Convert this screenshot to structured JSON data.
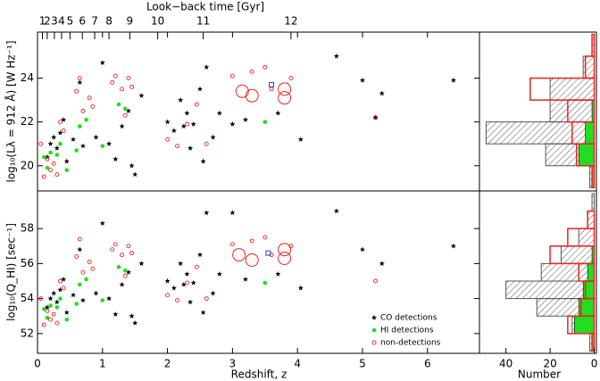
{
  "chart_data": [
    {
      "type": "scatter",
      "ylabel": "log₁₀(Lλ = 912 Å) [W Hz⁻¹]",
      "x2label": "Look−back time [Gyr]",
      "xlim": [
        0,
        6.8
      ],
      "ylim": [
        18.85,
        26.1
      ],
      "yticks": [
        20,
        22,
        24
      ],
      "x2ticks": [
        {
          "value": 0.076,
          "label": "1"
        },
        {
          "value": 0.15,
          "label": "2"
        },
        {
          "value": 0.26,
          "label": "3"
        },
        {
          "value": 0.37,
          "label": "4"
        },
        {
          "value": 0.5,
          "label": "5"
        },
        {
          "value": 0.69,
          "label": "6"
        },
        {
          "value": 0.88,
          "label": "7"
        },
        {
          "value": 1.1,
          "label": "8"
        },
        {
          "value": 1.42,
          "label": "9"
        },
        {
          "value": 1.85,
          "label": "10"
        },
        {
          "value": 2.55,
          "label": "11"
        },
        {
          "value": 3.9,
          "label": "12"
        }
      ],
      "series": [
        {
          "color": "#000000",
          "marker": "star",
          "x": [
            0.15,
            0.2,
            0.25,
            0.3,
            0.35,
            0.4,
            0.45,
            0.55,
            0.65,
            0.7,
            0.9,
            1.1,
            1.2,
            1.3,
            1.4,
            1.45,
            1.5,
            1.6,
            2.0,
            2.1,
            2.2,
            2.25,
            2.3,
            2.35,
            2.4,
            2.5,
            2.55,
            2.6,
            2.8,
            3.0,
            3.2,
            3.7,
            4.05,
            4.6,
            5.0,
            5.2,
            5.3,
            6.4,
            1.0,
            2.7
          ],
          "y": [
            20.4,
            21.0,
            21.3,
            20.8,
            21.5,
            22.1,
            20.2,
            21.2,
            23.8,
            20.9,
            21.3,
            21.0,
            20.3,
            21.8,
            22.5,
            20.0,
            19.6,
            23.2,
            22.0,
            21.6,
            23.0,
            21.8,
            22.4,
            20.8,
            21.9,
            23.5,
            20.2,
            24.5,
            22.4,
            21.9,
            22.1,
            22.4,
            21.2,
            25.0,
            23.9,
            22.2,
            23.3,
            23.9,
            24.7,
            21.3
          ]
        },
        {
          "color": "#22dd22",
          "marker": "dot",
          "x": [
            0.1,
            0.15,
            0.2,
            0.3,
            0.35,
            0.45,
            0.6,
            0.65,
            0.75,
            1.0,
            1.25,
            1.35,
            3.5
          ],
          "y": [
            20.4,
            19.9,
            20.6,
            20.5,
            21.0,
            19.8,
            20.7,
            21.8,
            22.1,
            20.9,
            22.8,
            22.6,
            22.0
          ]
        },
        {
          "color": "#ee2222",
          "marker": "ring",
          "x": [
            0.05,
            0.1,
            0.15,
            0.2,
            0.25,
            0.3,
            0.35,
            0.4,
            0.6,
            0.65,
            0.7,
            0.8,
            0.85,
            1.15,
            1.2,
            1.3,
            1.35,
            1.4,
            1.45,
            2.0,
            2.15,
            2.3,
            2.45,
            2.6,
            3.0,
            3.3,
            3.5,
            3.6,
            3.9,
            5.2
          ],
          "y": [
            21.0,
            19.5,
            20.3,
            19.8,
            20.1,
            19.6,
            22.0,
            21.6,
            23.4,
            24.0,
            22.5,
            23.1,
            22.7,
            23.8,
            24.1,
            23.5,
            22.3,
            24.0,
            23.6,
            21.2,
            20.9,
            21.9,
            22.8,
            21.0,
            24.1,
            24.3,
            24.5,
            23.5,
            24.0,
            22.2
          ]
        },
        {
          "color": "#ee2222",
          "marker": "big-ring",
          "x": [
            3.15,
            3.3,
            3.8,
            3.8
          ],
          "y": [
            23.4,
            23.2,
            23.5,
            23.1
          ]
        },
        {
          "color": "#3344cc",
          "marker": "square",
          "x": [
            3.6
          ],
          "y": [
            23.7
          ]
        }
      ]
    },
    {
      "type": "scatter",
      "xlabel": "Redshift, z",
      "ylabel": "log₁₀(Q_HI) [sec⁻¹]",
      "xlim": [
        0,
        6.8
      ],
      "ylim": [
        50.87,
        60.15
      ],
      "xticks": [
        0,
        1,
        2,
        3,
        4,
        5,
        6
      ],
      "yticks": [
        52,
        54,
        56,
        58
      ],
      "legend": "lower right",
      "series": [
        {
          "name": "CO detections",
          "color": "#000000",
          "marker": "star",
          "x": [
            0.15,
            0.2,
            0.25,
            0.3,
            0.35,
            0.4,
            0.45,
            0.55,
            0.65,
            0.7,
            0.9,
            1.0,
            1.1,
            1.2,
            1.3,
            1.4,
            1.45,
            1.5,
            1.6,
            2.0,
            2.1,
            2.2,
            2.25,
            2.3,
            2.35,
            2.4,
            2.5,
            2.55,
            2.6,
            2.7,
            2.8,
            3.0,
            3.2,
            3.7,
            4.05,
            4.6,
            5.0,
            5.3,
            6.4
          ],
          "y": [
            53.5,
            54.0,
            54.3,
            53.8,
            54.5,
            55.1,
            53.2,
            54.2,
            56.8,
            53.9,
            54.3,
            58.3,
            54.0,
            53.1,
            54.8,
            55.5,
            53.0,
            52.6,
            56.0,
            55.0,
            54.6,
            56.0,
            54.8,
            55.4,
            53.8,
            54.9,
            56.5,
            53.2,
            58.9,
            54.3,
            55.4,
            58.9,
            55.1,
            55.4,
            54.6,
            59.0,
            56.8,
            56.0,
            57.0
          ]
        },
        {
          "name": "HI detections",
          "color": "#22dd22",
          "marker": "dot",
          "x": [
            0.1,
            0.15,
            0.2,
            0.3,
            0.35,
            0.45,
            0.6,
            0.65,
            0.75,
            1.0,
            1.25,
            1.35,
            3.5
          ],
          "y": [
            53.4,
            52.9,
            53.6,
            53.5,
            54.0,
            52.8,
            53.7,
            54.8,
            55.1,
            53.9,
            55.8,
            55.6,
            54.9
          ]
        },
        {
          "name": "non-detections",
          "color": "#ee2222",
          "marker": "ring",
          "x": [
            0.05,
            0.1,
            0.15,
            0.2,
            0.25,
            0.3,
            0.35,
            0.4,
            0.6,
            0.65,
            0.7,
            0.8,
            0.85,
            1.15,
            1.2,
            1.3,
            1.35,
            1.4,
            1.45,
            2.0,
            2.15,
            2.3,
            2.45,
            2.6,
            3.0,
            3.3,
            3.5,
            3.6,
            3.9,
            5.2
          ],
          "y": [
            54.0,
            52.5,
            53.3,
            52.8,
            53.1,
            52.6,
            55.0,
            54.6,
            56.4,
            57.4,
            55.5,
            56.1,
            55.7,
            56.8,
            57.1,
            56.5,
            55.3,
            57.0,
            56.6,
            54.2,
            53.9,
            54.9,
            55.8,
            54.0,
            57.1,
            57.3,
            57.5,
            56.5,
            57.0,
            55.0
          ]
        },
        {
          "color": "#ee2222",
          "marker": "big-ring",
          "x": [
            3.1,
            3.3,
            3.8,
            3.8
          ],
          "y": [
            56.5,
            56.2,
            56.8,
            56.3
          ]
        },
        {
          "color": "#3344cc",
          "marker": "square",
          "x": [
            3.55
          ],
          "y": [
            56.6
          ]
        }
      ]
    },
    {
      "type": "histogram",
      "orientation": "horizontal",
      "xlim": [
        52,
        -1
      ],
      "bins": [
        19,
        20,
        21,
        22,
        23,
        24,
        25,
        26
      ],
      "series": [
        {
          "color": "#555555",
          "hatch": true,
          "values": [
            2,
            22,
            49,
            20,
            20,
            5,
            1
          ]
        },
        {
          "color": "#22dd22",
          "values": [
            1,
            7,
            4,
            1,
            0,
            0,
            0
          ]
        },
        {
          "color": "#ee2222",
          "outline": true,
          "values": [
            1,
            8,
            10,
            12,
            29,
            4,
            1
          ]
        }
      ]
    },
    {
      "type": "histogram",
      "orientation": "horizontal",
      "xlabel": "Number",
      "xlim": [
        52,
        -1
      ],
      "xticks": [
        40,
        20,
        0
      ],
      "bins": [
        51,
        52,
        53,
        54,
        55,
        56,
        57,
        58,
        59,
        60
      ],
      "series": [
        {
          "color": "#555555",
          "hatch": true,
          "values": [
            2,
            10,
            26,
            40,
            24,
            15,
            7,
            3,
            1
          ]
        },
        {
          "color": "#22dd22",
          "values": [
            1,
            9,
            7,
            5,
            3,
            1,
            0,
            0,
            0
          ]
        },
        {
          "color": "#ee2222",
          "outline": true,
          "values": [
            1,
            12,
            6,
            4,
            7,
            20,
            12,
            3,
            0
          ]
        }
      ]
    }
  ]
}
